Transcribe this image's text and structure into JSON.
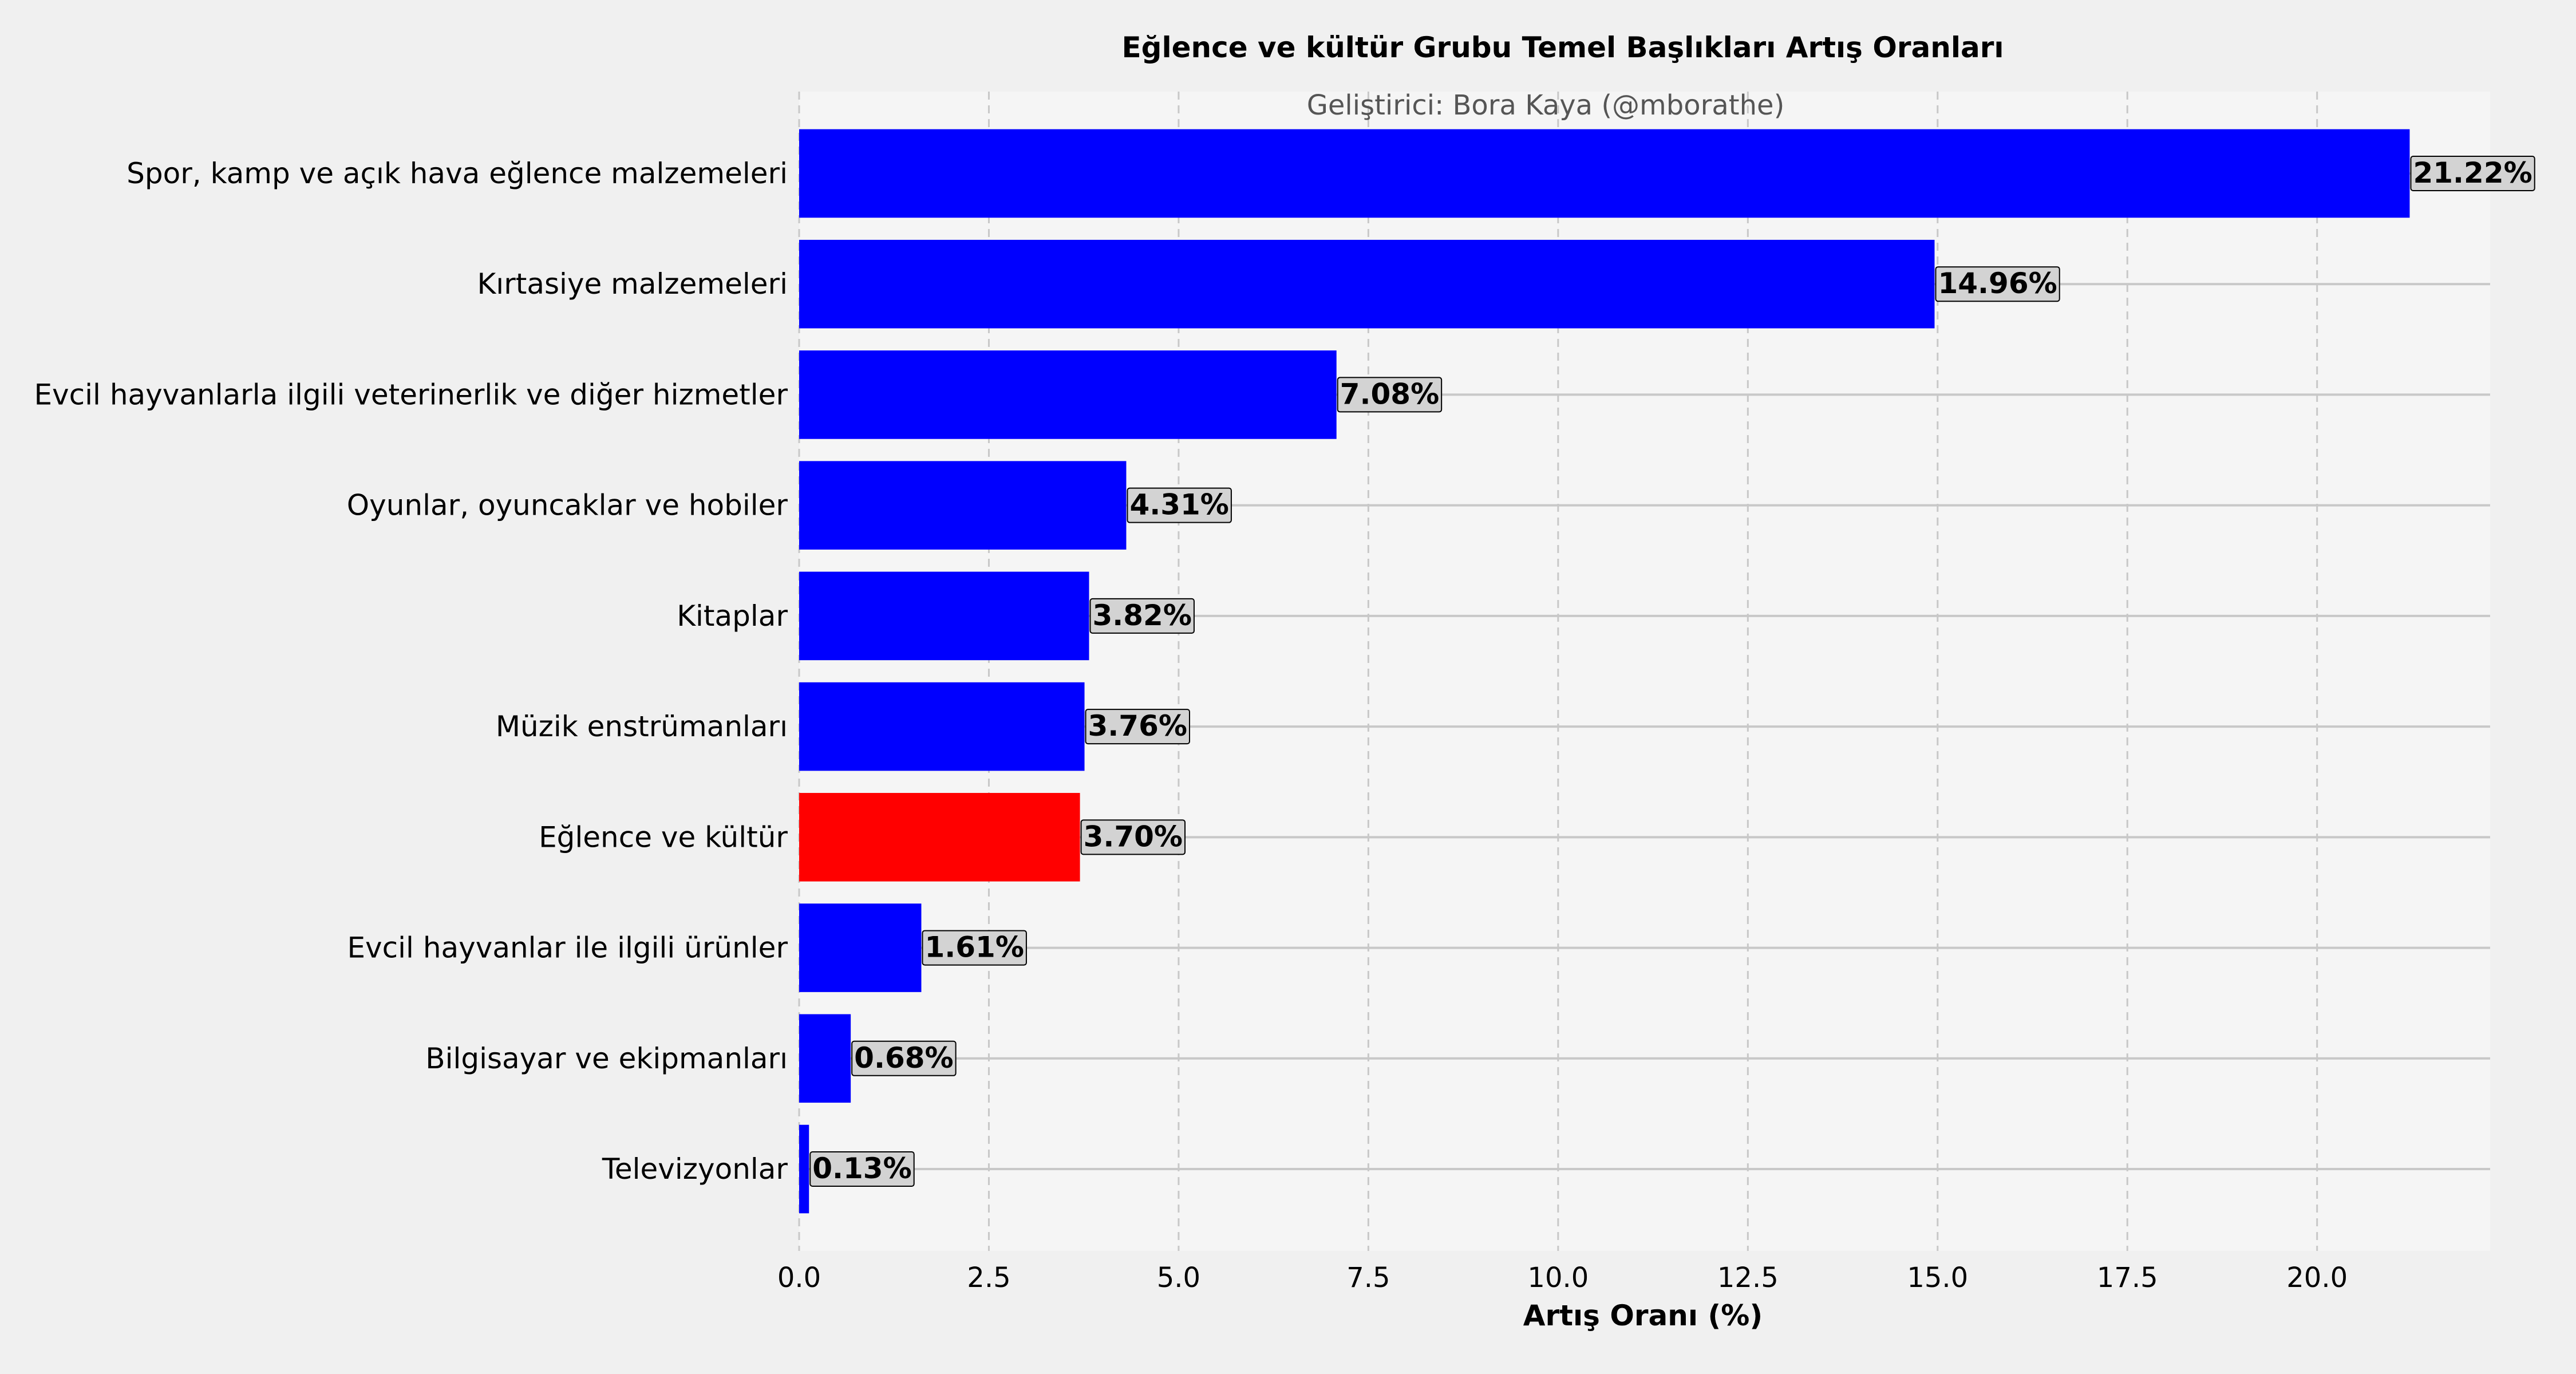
{
  "chart_data": {
    "type": "bar",
    "orientation": "horizontal",
    "title": "Eğlence ve kültür Grubu Temel Başlıkları Artış Oranları",
    "subtitle": "Geliştirici: Bora Kaya (@mborathe)",
    "xlabel": "Artış Oranı (%)",
    "ylabel": "",
    "xlim": [
      0,
      22.28
    ],
    "xticks": [
      0,
      2.5,
      5,
      7.5,
      10,
      12.5,
      15,
      17.5,
      20
    ],
    "xtick_labels": [
      "0.0",
      "2.5",
      "5.0",
      "7.5",
      "10.0",
      "12.5",
      "15.0",
      "17.5",
      "20.0"
    ],
    "grid": true,
    "categories": [
      "Spor, kamp ve açık hava eğlence malzemeleri",
      "Kırtasiye malzemeleri",
      "Evcil hayvanlarla ilgili veterinerlik ve diğer hizmetler",
      "Oyunlar, oyuncaklar ve hobiler",
      "Kitaplar",
      "Müzik enstrümanları",
      "Eğlence ve kültür",
      "Evcil hayvanlar ile ilgili ürünler",
      "Bilgisayar ve ekipmanları",
      "Televizyonlar"
    ],
    "values": [
      21.22,
      14.96,
      7.08,
      4.31,
      3.82,
      3.76,
      3.7,
      1.61,
      0.68,
      0.13
    ],
    "data_labels": [
      "21.22%",
      "14.96%",
      "7.08%",
      "4.31%",
      "3.82%",
      "3.76%",
      "3.70%",
      "1.61%",
      "0.68%",
      "0.13%"
    ],
    "highlight_category": "Eğlence ve kültür",
    "colors": {
      "bar": "#0000ff",
      "highlight": "#ff0000",
      "plot_background": "#f5f5f5",
      "figure_background": "#f0f0f0",
      "label_box": "#d3d3d3"
    }
  }
}
